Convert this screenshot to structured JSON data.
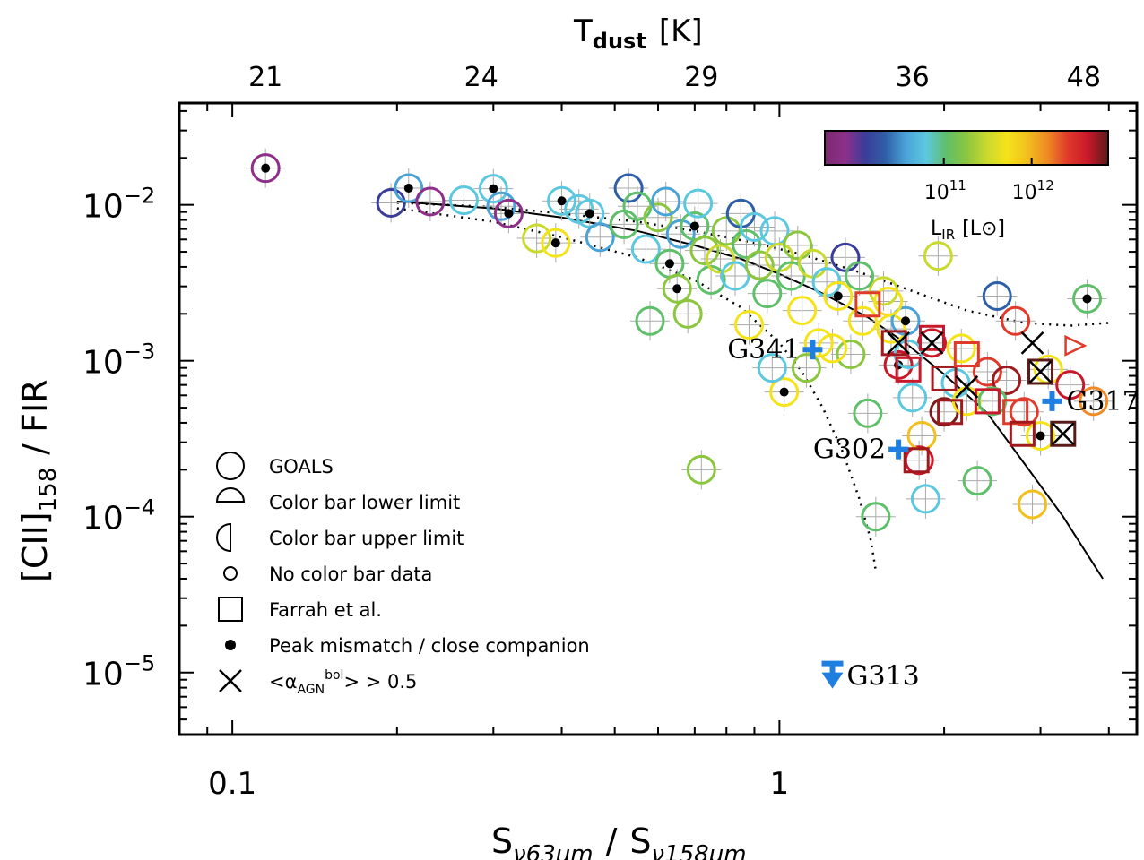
{
  "chart_data": {
    "type": "scatter",
    "xlabel": "S",
    "xlabel_sub1": "ν63μm",
    "xlabel_sub2": "ν158μm",
    "xlabel_sep": "/",
    "ylabel_main": "[CII]",
    "ylabel_sub": "158",
    "ylabel_rest": "/ FIR",
    "top_axis_label": "T",
    "top_axis_sub": "dust",
    "top_axis_unit": "[K]",
    "xscale": "log",
    "yscale": "log",
    "xlim": [
      0.08,
      4.5
    ],
    "ylim": [
      4e-06,
      0.045
    ],
    "x_ticks": [
      {
        "value": 0.1,
        "label": "0.1"
      },
      {
        "value": 1,
        "label": "1"
      }
    ],
    "y_ticks": [
      {
        "value": 0.01,
        "base": "10",
        "exp": "−2"
      },
      {
        "value": 0.001,
        "base": "10",
        "exp": "−3"
      },
      {
        "value": 0.0001,
        "base": "10",
        "exp": "−4"
      },
      {
        "value": 1e-05,
        "base": "10",
        "exp": "−5"
      }
    ],
    "top_ticks": [
      {
        "x": 0.115,
        "label": "21"
      },
      {
        "x": 0.285,
        "label": "24"
      },
      {
        "x": 0.72,
        "label": "29"
      },
      {
        "x": 1.75,
        "label": "36"
      },
      {
        "x": 3.6,
        "label": "48"
      }
    ],
    "colorbar": {
      "label": "L",
      "label_sub": "IR",
      "unit": "[L⊙]",
      "ticks": [
        {
          "label": "10",
          "exp": "11",
          "pos": 0.42
        },
        {
          "label": "10",
          "exp": "12",
          "pos": 0.73
        }
      ],
      "colors": [
        "#7a2a6e",
        "#8e2f8a",
        "#3a3d99",
        "#2f5fa8",
        "#4aa3d8",
        "#5cc8e0",
        "#5fbf6a",
        "#8cc63f",
        "#c9d92e",
        "#f5e31a",
        "#f2c01e",
        "#ef8a24",
        "#e03a2a",
        "#c8192a",
        "#5a1a1a"
      ]
    },
    "fit_curve": {
      "x": [
        0.2,
        0.3,
        0.4,
        0.55,
        0.7,
        0.85,
        1.0,
        1.2,
        1.45,
        1.7,
        2.0,
        2.4,
        2.8,
        3.3,
        3.9
      ],
      "y": [
        0.0105,
        0.0095,
        0.0083,
        0.0068,
        0.0055,
        0.0045,
        0.0036,
        0.0027,
        0.0019,
        0.0013,
        0.00082,
        0.00046,
        0.00022,
        0.0001,
        4e-05
      ]
    },
    "upper_bound_curve": {
      "x": [
        0.2,
        0.3,
        0.4,
        0.55,
        0.7,
        0.9,
        1.1,
        1.4,
        1.8,
        2.2,
        2.8,
        3.4,
        4.0
      ],
      "y": [
        0.0103,
        0.0097,
        0.0088,
        0.0078,
        0.0068,
        0.0057,
        0.0048,
        0.0037,
        0.0027,
        0.0021,
        0.00175,
        0.00168,
        0.00175
      ]
    },
    "lower_bound_curve": {
      "x": [
        0.2,
        0.3,
        0.4,
        0.55,
        0.7,
        0.85,
        1.0,
        1.1,
        1.2,
        1.3,
        1.4,
        1.47,
        1.5
      ],
      "y": [
        0.0095,
        0.0078,
        0.0062,
        0.0046,
        0.0033,
        0.0022,
        0.0013,
        0.00085,
        0.0005,
        0.00027,
        0.00013,
        7e-05,
        4.5e-05
      ]
    },
    "series": [
      {
        "name": "GOALS",
        "points": [
          {
            "x": 0.115,
            "y": 0.0172,
            "c": "#8e2f8a",
            "dot": true
          },
          {
            "x": 0.195,
            "y": 0.0103,
            "c": "#3a3d99"
          },
          {
            "x": 0.21,
            "y": 0.0128,
            "c": "#4aa3d8",
            "dot": true
          },
          {
            "x": 0.23,
            "y": 0.0105,
            "c": "#8e2f8a"
          },
          {
            "x": 0.265,
            "y": 0.0107,
            "c": "#5cc8e0"
          },
          {
            "x": 0.3,
            "y": 0.0127,
            "c": "#5cc8e0",
            "dot": true
          },
          {
            "x": 0.31,
            "y": 0.0098,
            "c": "#4aa3d8"
          },
          {
            "x": 0.32,
            "y": 0.0088,
            "c": "#8e2f8a",
            "dot": true
          },
          {
            "x": 0.36,
            "y": 0.0061,
            "c": "#c9d92e"
          },
          {
            "x": 0.39,
            "y": 0.0057,
            "c": "#f5e31a",
            "dot": true
          },
          {
            "x": 0.4,
            "y": 0.0106,
            "c": "#5cc8e0",
            "dot": true
          },
          {
            "x": 0.43,
            "y": 0.0094,
            "c": "#5cc8e0"
          },
          {
            "x": 0.45,
            "y": 0.0088,
            "c": "#5cc8e0",
            "dot": true
          },
          {
            "x": 0.47,
            "y": 0.0062,
            "c": "#4aa3d8"
          },
          {
            "x": 0.52,
            "y": 0.0075,
            "c": "#5fbf6a"
          },
          {
            "x": 0.53,
            "y": 0.0128,
            "c": "#2f5fa8"
          },
          {
            "x": 0.55,
            "y": 0.0098,
            "c": "#5fbf6a"
          },
          {
            "x": 0.57,
            "y": 0.0052,
            "c": "#5cc8e0"
          },
          {
            "x": 0.6,
            "y": 0.0083,
            "c": "#8cc63f"
          },
          {
            "x": 0.62,
            "y": 0.0105,
            "c": "#4aa3d8"
          },
          {
            "x": 0.63,
            "y": 0.0042,
            "c": "#5fbf6a",
            "dot": true
          },
          {
            "x": 0.65,
            "y": 0.0029,
            "c": "#8cc63f",
            "dot": true
          },
          {
            "x": 0.66,
            "y": 0.0065,
            "c": "#4aa3d8"
          },
          {
            "x": 0.7,
            "y": 0.0073,
            "c": "#5fbf6a",
            "dot": true
          },
          {
            "x": 0.71,
            "y": 0.0102,
            "c": "#5cc8e0"
          },
          {
            "x": 0.73,
            "y": 0.0051,
            "c": "#8cc63f"
          },
          {
            "x": 0.75,
            "y": 0.0033,
            "c": "#5fbf6a"
          },
          {
            "x": 0.78,
            "y": 0.0045,
            "c": "#c9d92e"
          },
          {
            "x": 0.8,
            "y": 0.0068,
            "c": "#8cc63f"
          },
          {
            "x": 0.83,
            "y": 0.0035,
            "c": "#5cc8e0"
          },
          {
            "x": 0.85,
            "y": 0.0088,
            "c": "#2f5fa8"
          },
          {
            "x": 0.87,
            "y": 0.0056,
            "c": "#5fbf6a"
          },
          {
            "x": 0.9,
            "y": 0.0072,
            "c": "#5cc8e0"
          },
          {
            "x": 0.92,
            "y": 0.0041,
            "c": "#8cc63f"
          },
          {
            "x": 0.95,
            "y": 0.0027,
            "c": "#5fbf6a"
          },
          {
            "x": 0.98,
            "y": 0.0068,
            "c": "#5cc8e0"
          },
          {
            "x": 1.0,
            "y": 0.0046,
            "c": "#c9d92e"
          },
          {
            "x": 1.02,
            "y": 0.00063,
            "c": "#f5e31a",
            "dot": true
          },
          {
            "x": 1.05,
            "y": 0.0035,
            "c": "#5fbf6a"
          },
          {
            "x": 1.08,
            "y": 0.0055,
            "c": "#8cc63f"
          },
          {
            "x": 1.1,
            "y": 0.0021,
            "c": "#f5e31a"
          },
          {
            "x": 1.15,
            "y": 0.0042,
            "c": "#c9d92e"
          },
          {
            "x": 1.18,
            "y": 0.0013,
            "c": "#f5e31a"
          },
          {
            "x": 1.22,
            "y": 0.0032,
            "c": "#5cc8e0"
          },
          {
            "x": 1.28,
            "y": 0.0026,
            "c": "#f5e31a",
            "dot": true
          },
          {
            "x": 1.32,
            "y": 0.0046,
            "c": "#3a3d99"
          },
          {
            "x": 1.35,
            "y": 0.0011,
            "c": "#8cc63f"
          },
          {
            "x": 1.42,
            "y": 0.0018,
            "c": "#f5e31a"
          },
          {
            "x": 1.45,
            "y": 0.00046,
            "c": "#5fbf6a"
          },
          {
            "x": 1.5,
            "y": 0.0001,
            "c": "#5fbf6a"
          },
          {
            "x": 1.55,
            "y": 0.0028,
            "c": "#c9d92e"
          },
          {
            "x": 1.6,
            "y": 0.0016,
            "c": "#f5e31a"
          },
          {
            "x": 1.65,
            "y": 0.00094,
            "c": "#c8192a",
            "dot": true
          },
          {
            "x": 1.7,
            "y": 0.0018,
            "c": "#4aa3d8",
            "dot": true
          },
          {
            "x": 1.75,
            "y": 0.00058,
            "c": "#5cc8e0"
          },
          {
            "x": 1.8,
            "y": 0.00023,
            "c": "#c8192a"
          },
          {
            "x": 1.85,
            "y": 0.00013,
            "c": "#5cc8e0"
          },
          {
            "x": 1.9,
            "y": 0.0013,
            "c": "#c8192a"
          },
          {
            "x": 1.95,
            "y": 0.0047,
            "c": "#c9d92e"
          },
          {
            "x": 2.0,
            "y": 0.00047,
            "c": "#7a1a1a"
          },
          {
            "x": 2.1,
            "y": 0.00072,
            "c": "#5cc8e0"
          },
          {
            "x": 2.2,
            "y": 0.00055,
            "c": "#f5e31a"
          },
          {
            "x": 2.3,
            "y": 0.00017,
            "c": "#5fbf6a"
          },
          {
            "x": 2.4,
            "y": 0.00085,
            "c": "#e03a2a"
          },
          {
            "x": 2.5,
            "y": 0.0026,
            "c": "#2f5fa8"
          },
          {
            "x": 2.6,
            "y": 0.00075,
            "c": "#a0191e"
          },
          {
            "x": 2.7,
            "y": 0.0018,
            "c": "#e03a2a"
          },
          {
            "x": 2.8,
            "y": 0.00047,
            "c": "#e03a2a"
          },
          {
            "x": 2.9,
            "y": 0.00012,
            "c": "#f2c01e"
          },
          {
            "x": 3.0,
            "y": 0.00033,
            "c": "#f5e31a",
            "dot": true
          },
          {
            "x": 3.1,
            "y": 0.00088,
            "c": "#f5e31a"
          },
          {
            "x": 3.4,
            "y": 0.0007,
            "c": "#c8192a"
          },
          {
            "x": 3.65,
            "y": 0.0025,
            "c": "#5fbf6a",
            "dot": true
          },
          {
            "x": 3.75,
            "y": 0.00055,
            "c": "#ef8a24"
          },
          {
            "x": 0.58,
            "y": 0.0018,
            "c": "#5fbf6a"
          },
          {
            "x": 0.68,
            "y": 0.002,
            "c": "#8cc63f"
          },
          {
            "x": 0.72,
            "y": 0.0002,
            "c": "#8cc63f"
          },
          {
            "x": 0.88,
            "y": 0.0017,
            "c": "#f5e31a"
          },
          {
            "x": 0.97,
            "y": 0.0009,
            "c": "#5cc8e0"
          },
          {
            "x": 1.12,
            "y": 0.0009,
            "c": "#8cc63f"
          },
          {
            "x": 1.25,
            "y": 0.0012,
            "c": "#f5e31a"
          },
          {
            "x": 1.4,
            "y": 0.0035,
            "c": "#5fbf6a"
          },
          {
            "x": 1.58,
            "y": 0.0024,
            "c": "#f5e31a"
          },
          {
            "x": 1.72,
            "y": 0.0011,
            "c": "#5cc8e0"
          },
          {
            "x": 1.82,
            "y": 0.00033,
            "c": "#f2c01e"
          },
          {
            "x": 2.15,
            "y": 0.0012,
            "c": "#f5e31a"
          },
          {
            "x": 2.45,
            "y": 0.00055,
            "c": "#5fbf6a"
          }
        ]
      },
      {
        "name": "Farrah et al.",
        "points": [
          {
            "x": 1.45,
            "y": 0.0023,
            "c": "#e03a2a"
          },
          {
            "x": 1.62,
            "y": 0.0013,
            "c": "#a0191e"
          },
          {
            "x": 1.72,
            "y": 0.00088,
            "c": "#c8192a"
          },
          {
            "x": 1.78,
            "y": 0.00023,
            "c": "#a0191e"
          },
          {
            "x": 1.9,
            "y": 0.0014,
            "c": "#c8192a"
          },
          {
            "x": 2.0,
            "y": 0.00077,
            "c": "#a0191e"
          },
          {
            "x": 2.05,
            "y": 0.00047,
            "c": "#a0191e"
          },
          {
            "x": 2.2,
            "y": 0.0011,
            "c": "#e03a2a"
          },
          {
            "x": 2.4,
            "y": 0.00055,
            "c": "#c8192a"
          },
          {
            "x": 2.7,
            "y": 0.00047,
            "c": "#e03a2a"
          },
          {
            "x": 2.78,
            "y": 0.00034,
            "c": "#a0191e"
          },
          {
            "x": 3.0,
            "y": 0.00085,
            "c": "#5a1a1a"
          },
          {
            "x": 3.3,
            "y": 0.00034,
            "c": "#5a1a1a"
          }
        ]
      },
      {
        "name": "AGN",
        "points": [
          {
            "x": 1.65,
            "y": 0.0013
          },
          {
            "x": 1.9,
            "y": 0.0013
          },
          {
            "x": 2.2,
            "y": 0.00068
          },
          {
            "x": 2.9,
            "y": 0.0013
          },
          {
            "x": 3.0,
            "y": 0.00085
          },
          {
            "x": 3.3,
            "y": 0.00034
          }
        ]
      }
    ],
    "highlighted_sources": [
      {
        "name": "G341",
        "x": 1.15,
        "y": 0.00118,
        "marker": "cross",
        "label_side": "left"
      },
      {
        "name": "G317",
        "x": 3.15,
        "y": 0.00055,
        "marker": "cross",
        "label_side": "right"
      },
      {
        "name": "G302",
        "x": 1.65,
        "y": 0.00027,
        "marker": "cross",
        "label_side": "left"
      },
      {
        "name": "G313",
        "x": 1.25,
        "y": 9.5e-06,
        "marker": "upper-limit",
        "label_side": "right"
      }
    ],
    "legend": [
      {
        "key": "goals",
        "label": "GOALS"
      },
      {
        "key": "lower",
        "label": "Color bar lower limit"
      },
      {
        "key": "upper",
        "label": "Color bar upper limit"
      },
      {
        "key": "nodata",
        "label": "No color bar data"
      },
      {
        "key": "farrah",
        "label": "Farrah et al."
      },
      {
        "key": "peak",
        "label": "Peak mismatch / close companion"
      },
      {
        "key": "agn",
        "label": "<α",
        "sub": "AGN",
        "sup": "bol",
        "rest": "> > 0.5"
      }
    ],
    "legend_position": "bottom-left",
    "grid": false
  }
}
